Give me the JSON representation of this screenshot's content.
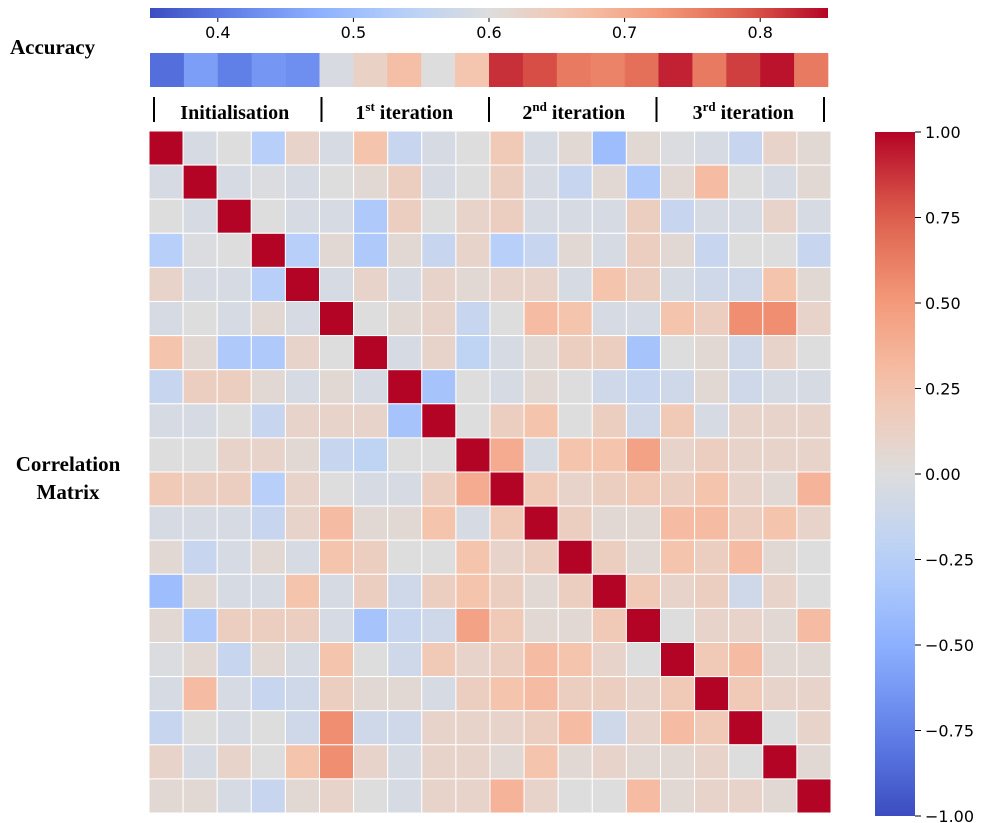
{
  "chart_data": [
    {
      "type": "heatmap",
      "title": "Accuracy",
      "groups": [
        {
          "name": "Initialisation",
          "suffix": ""
        },
        {
          "name": "1",
          "suffix": "st",
          "rest": " iteration"
        },
        {
          "name": "2",
          "suffix": "nd",
          "rest": " iteration"
        },
        {
          "name": "3",
          "suffix": "rd",
          "rest": " iteration"
        }
      ],
      "values": [
        0.39,
        0.45,
        0.41,
        0.44,
        0.43,
        0.59,
        0.63,
        0.67,
        0.6,
        0.66,
        0.82,
        0.8,
        0.76,
        0.75,
        0.77,
        0.83,
        0.76,
        0.81,
        0.84,
        0.76
      ],
      "colorbar": {
        "ticks": [
          0.4,
          0.5,
          0.6,
          0.7,
          0.8
        ],
        "range": [
          0.35,
          0.85
        ],
        "colormap": "coolwarm"
      }
    },
    {
      "type": "heatmap",
      "title": "Correlation Matrix",
      "title_lines": [
        "Correlation",
        "Matrix"
      ],
      "size": 20,
      "lower_triangle": [
        [],
        [
          -0.05
        ],
        [
          0.0,
          -0.05
        ],
        [
          -0.25,
          -0.02,
          0.0
        ],
        [
          0.1,
          -0.05,
          -0.05,
          -0.25
        ],
        [
          -0.05,
          0.0,
          -0.05,
          0.05,
          -0.05
        ],
        [
          0.25,
          0.05,
          -0.25,
          -0.3,
          0.1,
          0.0
        ],
        [
          -0.15,
          0.15,
          0.15,
          0.05,
          -0.05,
          0.05,
          -0.05
        ],
        [
          -0.05,
          -0.05,
          0.0,
          -0.15,
          0.1,
          0.1,
          0.1,
          -0.35
        ],
        [
          0.0,
          0.0,
          0.1,
          0.1,
          0.05,
          -0.15,
          -0.2,
          0.0,
          0.0
        ],
        [
          0.2,
          0.15,
          0.15,
          -0.25,
          0.1,
          0.0,
          -0.05,
          -0.05,
          0.15,
          0.4
        ],
        [
          -0.05,
          -0.05,
          -0.05,
          -0.15,
          0.1,
          0.3,
          0.05,
          0.05,
          0.25,
          -0.05,
          0.2
        ],
        [
          0.05,
          -0.15,
          -0.05,
          0.05,
          -0.05,
          0.25,
          0.15,
          0.0,
          0.0,
          0.25,
          0.1,
          0.15
        ],
        [
          -0.35,
          0.05,
          -0.05,
          -0.05,
          0.25,
          -0.05,
          0.15,
          -0.1,
          0.15,
          0.25,
          0.15,
          0.05,
          0.15
        ],
        [
          0.05,
          -0.25,
          0.15,
          0.15,
          0.15,
          -0.05,
          -0.25,
          -0.15,
          -0.1,
          0.45,
          0.2,
          0.05,
          0.05,
          0.2
        ],
        [
          -0.02,
          0.05,
          -0.15,
          0.05,
          -0.05,
          0.25,
          0.0,
          -0.1,
          0.2,
          0.1,
          0.15,
          0.3,
          0.25,
          0.1,
          0.0
        ],
        [
          -0.05,
          0.25,
          -0.05,
          -0.15,
          -0.1,
          0.15,
          0.05,
          0.05,
          -0.05,
          0.15,
          0.25,
          0.3,
          0.15,
          0.15,
          0.1,
          0.2
        ],
        [
          -0.15,
          0.0,
          -0.05,
          0.0,
          -0.1,
          0.55,
          -0.1,
          -0.1,
          0.1,
          0.1,
          0.1,
          0.15,
          0.3,
          -0.1,
          0.1,
          0.3,
          0.2
        ],
        [
          0.1,
          -0.05,
          0.1,
          0.0,
          0.25,
          0.25,
          0.1,
          -0.05,
          0.1,
          0.1,
          0.05,
          0.25,
          0.05,
          0.1,
          0.05,
          0.05,
          0.1,
          0.0
        ],
        [
          0.05,
          0.05,
          -0.05,
          -0.15,
          0.05,
          0.1,
          0.0,
          -0.05,
          0.1,
          0.1,
          0.35,
          0.1,
          0.0,
          0.0,
          0.3,
          0.05,
          0.1,
          0.1,
          0.05
        ]
      ],
      "upper_overrides": [
        [
          0,
          13,
          -0.4
        ],
        [
          1,
          14,
          -0.3
        ],
        [
          1,
          16,
          0.3
        ],
        [
          2,
          6,
          -0.3
        ],
        [
          3,
          6,
          -0.3
        ],
        [
          5,
          18,
          0.55
        ],
        [
          6,
          14,
          -0.35
        ],
        [
          7,
          8,
          -0.35
        ],
        [
          9,
          14,
          0.45
        ],
        [
          9,
          10,
          0.4
        ]
      ],
      "colorbar": {
        "ticks": [
          "1.00",
          "0.75",
          "0.50",
          "0.25",
          "0.00",
          "−0.25",
          "−0.50",
          "−0.75",
          "−1.00"
        ],
        "tick_values": [
          1.0,
          0.75,
          0.5,
          0.25,
          0.0,
          -0.25,
          -0.5,
          -0.75,
          -1.0
        ],
        "range": [
          -1.0,
          1.0
        ],
        "colormap": "coolwarm"
      }
    }
  ]
}
